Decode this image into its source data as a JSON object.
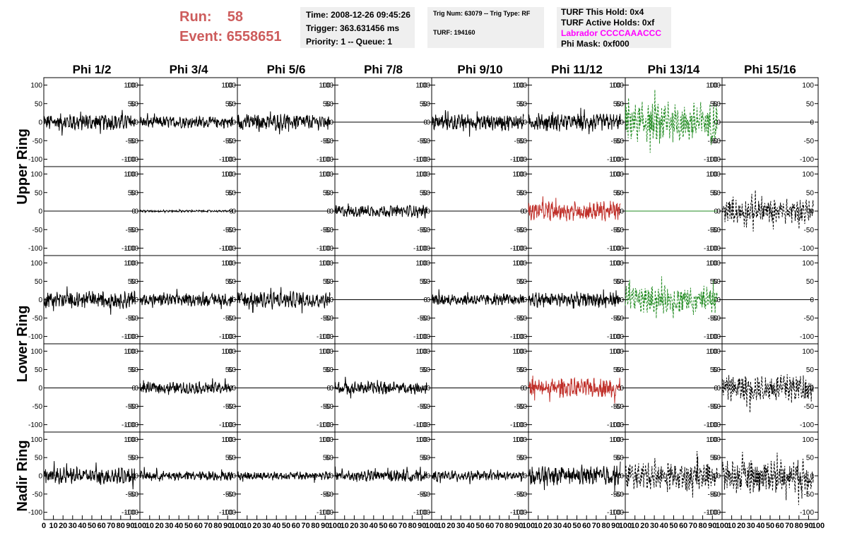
{
  "header": {
    "run_label": "Run:",
    "run_value": "58",
    "event_label": "Event:",
    "event_value": "6558651",
    "time": "Time: 2008-12-26 09:45:26",
    "trigger": "Trigger: 363.631456 ms",
    "priority": "Priority: 1 -- Queue: 1",
    "trig_num": "Trig Num: 63079 -- Trig Type: RF",
    "turf": "TURF: 194160",
    "turf_this_hold": "TURF This Hold: 0x4",
    "turf_active_holds": "TURF Active Holds: 0xf",
    "labrador": "Labrador CCCCAAACCC",
    "phi_mask": "Phi Mask: 0xf000"
  },
  "chart_data": {
    "type": "line",
    "columns": [
      "Phi 1/2",
      "Phi 3/4",
      "Phi 5/6",
      "Phi 7/8",
      "Phi 9/10",
      "Phi 11/12",
      "Phi 13/14",
      "Phi 15/16"
    ],
    "ring_labels": [
      {
        "label": "Upper Ring",
        "rows": [
          0,
          1
        ]
      },
      {
        "label": "Lower Ring",
        "rows": [
          2,
          3
        ]
      },
      {
        "label": "Nadir Ring",
        "rows": [
          4,
          4
        ]
      }
    ],
    "ylim": [
      -120,
      120
    ],
    "yticks": [
      -100,
      -50,
      0,
      50,
      100
    ],
    "ytick_labels": [
      "-100",
      "-50",
      "0",
      "50",
      "100"
    ],
    "xlim": [
      0,
      100
    ],
    "xticks": [
      0,
      10,
      20,
      30,
      40,
      50,
      60,
      70,
      80,
      90,
      100
    ],
    "xtick_labels": [
      "0",
      "10",
      "20",
      "30",
      "40",
      "50",
      "60",
      "70",
      "80",
      "90",
      "100"
    ],
    "samples": 256,
    "color_black": "#000000",
    "color_red": "#c0302a",
    "color_green": "#228b22",
    "panels": [
      [
        {
          "amp": 17,
          "color": "black",
          "dashed": false
        },
        {
          "amp": 12,
          "color": "black",
          "dashed": false
        },
        {
          "amp": 17,
          "color": "black",
          "dashed": false
        },
        {
          "amp": 0,
          "color": "black",
          "dashed": false
        },
        {
          "amp": 17,
          "color": "black",
          "dashed": false
        },
        {
          "amp": 17,
          "color": "black",
          "dashed": false
        },
        {
          "amp": 40,
          "color": "green",
          "dashed": true
        },
        {
          "amp": 0,
          "color": "black",
          "dashed": false
        }
      ],
      [
        {
          "amp": 0,
          "color": "black",
          "dashed": false
        },
        {
          "amp": 2,
          "color": "black",
          "dashed": false
        },
        {
          "amp": 0,
          "color": "black",
          "dashed": false
        },
        {
          "amp": 12,
          "color": "black",
          "dashed": false
        },
        {
          "amp": 0,
          "color": "black",
          "dashed": false
        },
        {
          "amp": 20,
          "color": "red",
          "dashed": false
        },
        {
          "amp": 0,
          "color": "green",
          "dashed": false
        },
        {
          "amp": 25,
          "color": "black",
          "dashed": true
        }
      ],
      [
        {
          "amp": 18,
          "color": "black",
          "dashed": false
        },
        {
          "amp": 13,
          "color": "black",
          "dashed": false
        },
        {
          "amp": 17,
          "color": "black",
          "dashed": false
        },
        {
          "amp": 0,
          "color": "black",
          "dashed": false
        },
        {
          "amp": 12,
          "color": "black",
          "dashed": false
        },
        {
          "amp": 15,
          "color": "black",
          "dashed": false
        },
        {
          "amp": 28,
          "color": "green",
          "dashed": true
        },
        {
          "amp": 0,
          "color": "black",
          "dashed": false
        }
      ],
      [
        {
          "amp": 0,
          "color": "black",
          "dashed": false
        },
        {
          "amp": 12,
          "color": "black",
          "dashed": false
        },
        {
          "amp": 0,
          "color": "black",
          "dashed": false
        },
        {
          "amp": 13,
          "color": "black",
          "dashed": false
        },
        {
          "amp": 0,
          "color": "black",
          "dashed": false
        },
        {
          "amp": 20,
          "color": "red",
          "dashed": false
        },
        {
          "amp": 0,
          "color": "black",
          "dashed": false
        },
        {
          "amp": 28,
          "color": "black",
          "dashed": true
        }
      ],
      [
        {
          "amp": 17,
          "color": "black",
          "dashed": false
        },
        {
          "amp": 10,
          "color": "black",
          "dashed": false
        },
        {
          "amp": 9,
          "color": "black",
          "dashed": false
        },
        {
          "amp": 12,
          "color": "black",
          "dashed": false
        },
        {
          "amp": 10,
          "color": "black",
          "dashed": false
        },
        {
          "amp": 20,
          "color": "black",
          "dashed": false
        },
        {
          "amp": 28,
          "color": "black",
          "dashed": true
        },
        {
          "amp": 35,
          "color": "black",
          "dashed": true
        }
      ]
    ]
  }
}
